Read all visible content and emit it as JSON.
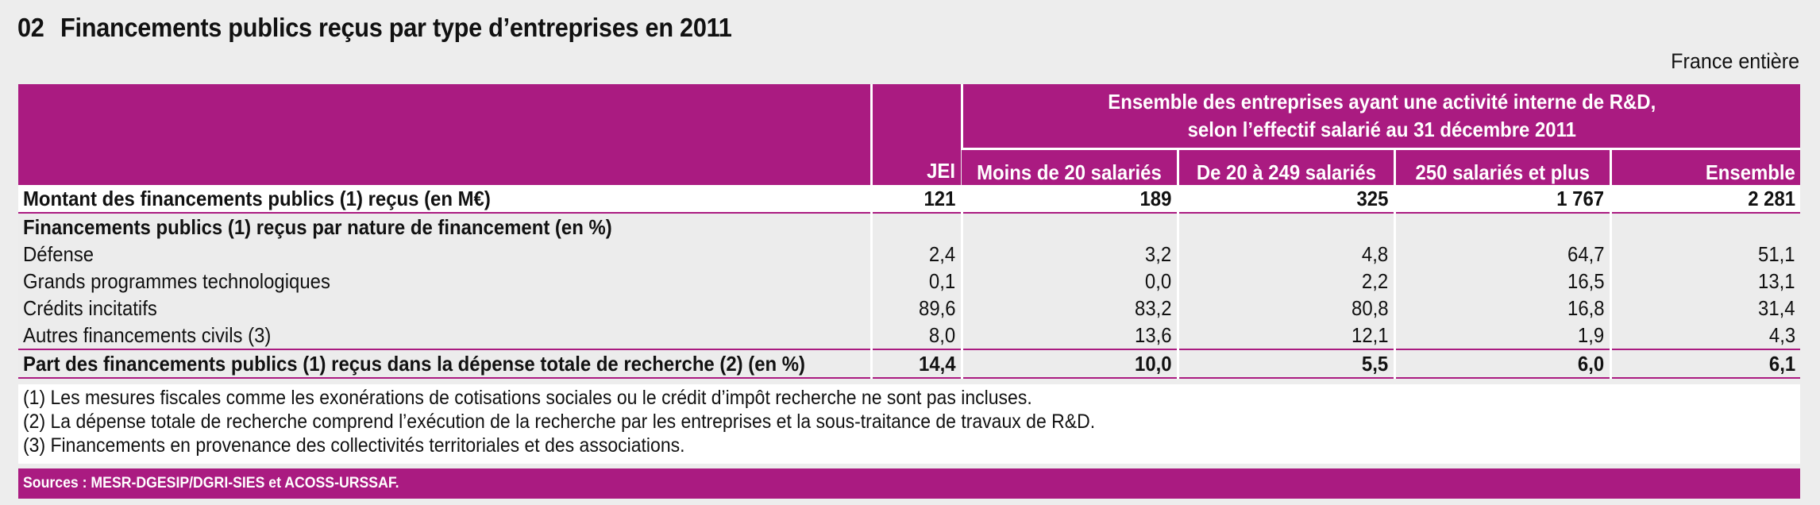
{
  "header": {
    "number": "02",
    "title": "Financements publics reçus par type d’entreprises en 2011",
    "scope": "France entière"
  },
  "table": {
    "group_header_line1": "Ensemble des entreprises ayant une activité interne de R&D,",
    "group_header_line2": "selon l’effectif salarié au 31 décembre 2011",
    "columns": [
      "JEI",
      "Moins de 20 salariés",
      "De 20 à 249 salariés",
      "250 salariés et plus",
      "Ensemble"
    ],
    "rows": [
      {
        "label": "Montant des financements publics (1) reçus (en M€)",
        "values": [
          "121",
          "189",
          "325",
          "1 767",
          "2 281"
        ]
      },
      {
        "label": "Financements publics (1) reçus par nature de financement (en %)",
        "values": [
          "",
          "",
          "",
          "",
          ""
        ]
      },
      {
        "label": "Défense",
        "values": [
          "2,4",
          "3,2",
          "4,8",
          "64,7",
          "51,1"
        ]
      },
      {
        "label": "Grands programmes technologiques",
        "values": [
          "0,1",
          "0,0",
          "2,2",
          "16,5",
          "13,1"
        ]
      },
      {
        "label": "Crédits incitatifs",
        "values": [
          "89,6",
          "83,2",
          "80,8",
          "16,8",
          "31,4"
        ]
      },
      {
        "label": "Autres financements civils (3)",
        "values": [
          "8,0",
          "13,6",
          "12,1",
          "1,9",
          "4,3"
        ]
      },
      {
        "label": "Part des financements publics (1) reçus dans la dépense totale de recherche (2) (en %)",
        "values": [
          "14,4",
          "10,0",
          "5,5",
          "6,0",
          "6,1"
        ]
      }
    ]
  },
  "notes": [
    "(1) Les mesures fiscales comme les exonérations de cotisations sociales ou le crédit d’impôt recherche ne sont pas incluses.",
    "(2) La dépense totale de recherche comprend l’exécution de la recherche par les entreprises et la sous-traitance de travaux de R&D.",
    "(3) Financements en provenance des collectivités territoriales et des associations."
  ],
  "sources": "Sources : MESR-DGESIP/DGRI-SIES et ACOSS-URSSAF.",
  "colors": {
    "accent": "#aa1b81",
    "background": "#ededed"
  }
}
